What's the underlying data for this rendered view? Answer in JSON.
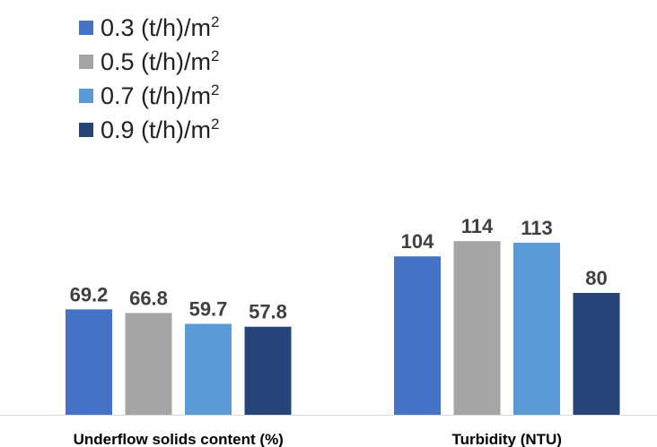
{
  "chart_data": {
    "type": "bar",
    "categories": [
      "Underflow solids content (%)",
      "Turbidity (NTU)"
    ],
    "series": [
      {
        "name": "0.3 (t/h)/m",
        "values": [
          69.2,
          104
        ],
        "labels": [
          "69.2",
          "104"
        ],
        "color": "#4472c4"
      },
      {
        "name": "0.5 (t/h)/m",
        "values": [
          66.8,
          114
        ],
        "labels": [
          "66.8",
          "114"
        ],
        "color": "#a5a5a5"
      },
      {
        "name": "0.7 (t/h)/m",
        "values": [
          59.7,
          113
        ],
        "labels": [
          "59.7",
          "113"
        ],
        "color": "#5b9bd5"
      },
      {
        "name": "0.9 (t/h)/m",
        "values": [
          57.8,
          80
        ],
        "labels": [
          "57.8",
          "80"
        ],
        "color": "#264478"
      }
    ],
    "unit_superscript": "2",
    "ylim": [
      0,
      150
    ],
    "legend_position": "top-left",
    "grid": false
  }
}
